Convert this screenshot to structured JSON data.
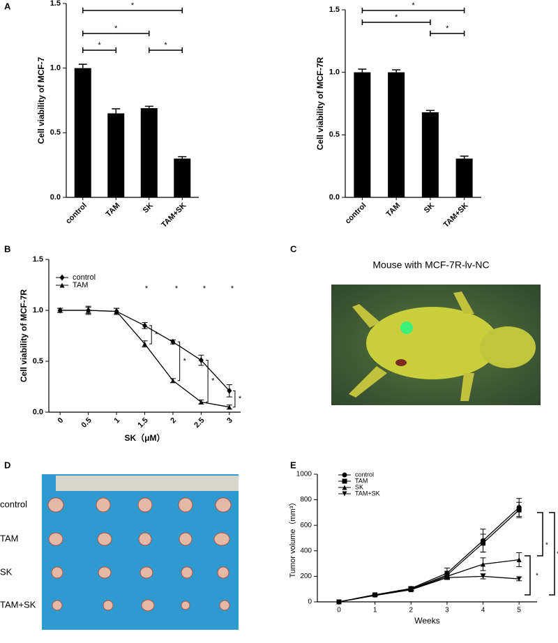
{
  "panel_labels": [
    "A",
    "B",
    "C",
    "D",
    "E"
  ],
  "photo_c": {
    "title": "Mouse with MCF-7R-lv-NC"
  },
  "photo_d": {
    "row_labels": [
      "control",
      "TAM",
      "SK",
      "TAM+SK"
    ]
  },
  "chart_data": [
    {
      "type": "bar",
      "ylabel": "Cell viability of MCF-7",
      "categories": [
        "control",
        "TAM",
        "SK",
        "TAM+SK"
      ],
      "values": [
        1.0,
        0.65,
        0.69,
        0.3
      ],
      "errors": [
        0.03,
        0.035,
        0.015,
        0.015
      ],
      "color": "#000000",
      "ylim": [
        0,
        1.5
      ],
      "yticks": [
        {
          "value": 0,
          "label": "0.0"
        },
        {
          "value": 0.5,
          "label": "0.5"
        },
        {
          "value": 1,
          "label": "1.0"
        },
        {
          "value": 1.5,
          "label": "1.5"
        }
      ],
      "annotations": [
        "*",
        "*",
        "*",
        "*"
      ]
    },
    {
      "type": "bar",
      "ylabel": "Cell viability of MCF-7R",
      "categories": [
        "control",
        "TAM",
        "SK",
        "TAM+SK"
      ],
      "values": [
        1.0,
        1.0,
        0.68,
        0.31
      ],
      "errors": [
        0.025,
        0.02,
        0.015,
        0.02
      ],
      "color": "#000000",
      "ylim": [
        0,
        1.5
      ],
      "yticks": [
        {
          "value": 0,
          "label": "0.0"
        },
        {
          "value": 0.5,
          "label": "0.5"
        },
        {
          "value": 1,
          "label": "1.0"
        },
        {
          "value": 1.5,
          "label": "1.5"
        }
      ],
      "annotations": [
        "*",
        "*",
        "*"
      ]
    },
    {
      "type": "line",
      "xlabel": "SK（μM）",
      "ylabel": "Cell viability of MCF-7R",
      "x": [
        0,
        0.5,
        1,
        1.5,
        2,
        2.5,
        3
      ],
      "xlim": [
        -0.2,
        3.2
      ],
      "xticks": [
        0,
        0.5,
        1,
        1.5,
        2,
        2.5,
        3
      ],
      "ylim": [
        0,
        1.5
      ],
      "yticks": [
        {
          "value": 0,
          "label": "0.0"
        },
        {
          "value": 0.5,
          "label": "0.5"
        },
        {
          "value": 1,
          "label": "1.0"
        },
        {
          "value": 1.5,
          "label": "1.5"
        }
      ],
      "series": [
        {
          "name": "control",
          "color": "#000000",
          "marker": "diamond",
          "values": [
            1.0,
            1.0,
            0.99,
            0.85,
            0.69,
            0.51,
            0.21
          ],
          "errors": [
            0.02,
            0.04,
            0.03,
            0.03,
            0.02,
            0.05,
            0.06
          ]
        },
        {
          "name": "TAM",
          "color": "#000000",
          "marker": "triangle",
          "values": [
            1.0,
            1.0,
            0.99,
            0.67,
            0.31,
            0.1,
            0.05
          ],
          "errors": [
            0.02,
            0.03,
            0.03,
            0.03,
            0.02,
            0.02,
            0.02
          ]
        }
      ],
      "legend": "top-left",
      "annotations": [
        "*",
        "*",
        "*",
        "*",
        "*",
        "*",
        "*",
        "*"
      ]
    },
    {
      "type": "line",
      "xlabel": "Weeks",
      "ylabel": "Tumor volume（mm³）",
      "x": [
        0,
        1,
        2,
        3,
        4,
        5
      ],
      "xlim": [
        -0.6,
        5.5
      ],
      "xticks": [
        0,
        1,
        2,
        3,
        4,
        5
      ],
      "ylim": [
        0,
        1000
      ],
      "yticks": [
        0,
        200,
        400,
        600,
        800,
        1000
      ],
      "series": [
        {
          "name": "control",
          "color": "#000000",
          "marker": "circle",
          "values": [
            0,
            55,
            105,
            225,
            480,
            740
          ],
          "errors": [
            0,
            5,
            15,
            40,
            90,
            70
          ]
        },
        {
          "name": "TAM",
          "color": "#000000",
          "marker": "square",
          "values": [
            0,
            55,
            100,
            210,
            460,
            720
          ],
          "errors": [
            0,
            5,
            10,
            30,
            70,
            60
          ]
        },
        {
          "name": "SK",
          "color": "#000000",
          "marker": "triangle",
          "values": [
            0,
            55,
            95,
            200,
            295,
            330
          ],
          "errors": [
            0,
            5,
            10,
            20,
            50,
            55
          ]
        },
        {
          "name": "TAM+SK",
          "color": "#000000",
          "marker": "triangle-down",
          "values": [
            0,
            50,
            95,
            190,
            200,
            180
          ],
          "errors": [
            0,
            5,
            8,
            15,
            20,
            15
          ]
        }
      ],
      "legend": "top-left",
      "annotations": [
        "*",
        "*",
        "*"
      ]
    }
  ]
}
